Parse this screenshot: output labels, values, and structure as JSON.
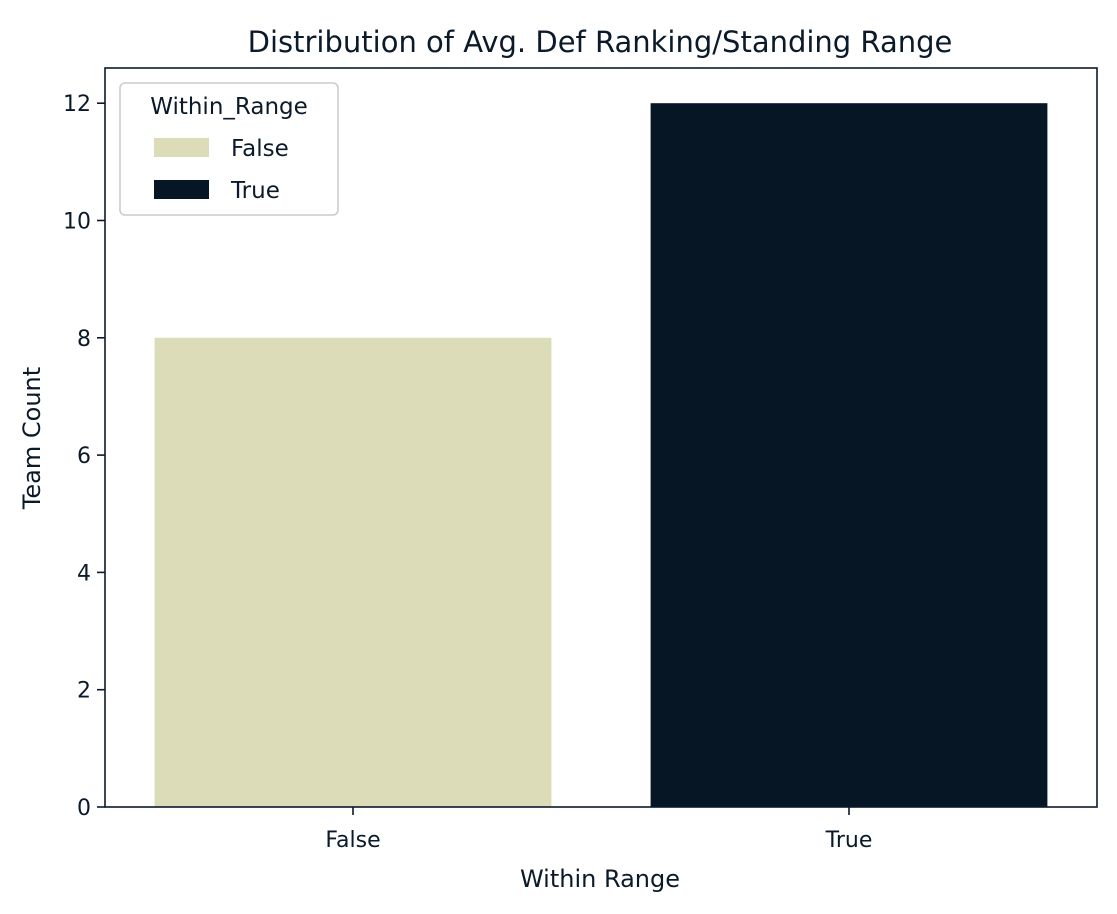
{
  "chart_data": {
    "type": "bar",
    "title": "Distribution of Avg. Def Ranking/Standing Range",
    "xlabel": "Within Range",
    "ylabel": "Team Count",
    "categories": [
      "False",
      "True"
    ],
    "values": [
      8,
      12
    ],
    "bar_colors": [
      "#dcdcb9",
      "#071624"
    ],
    "ylim": [
      0,
      12.6
    ],
    "yticks": [
      0,
      2,
      4,
      6,
      8,
      10,
      12
    ],
    "grid": false,
    "legend": {
      "title": "Within_Range",
      "placement": "top-left",
      "entries": [
        {
          "label": "False",
          "color": "#dcdcb9"
        },
        {
          "label": "True",
          "color": "#071624"
        }
      ]
    }
  }
}
